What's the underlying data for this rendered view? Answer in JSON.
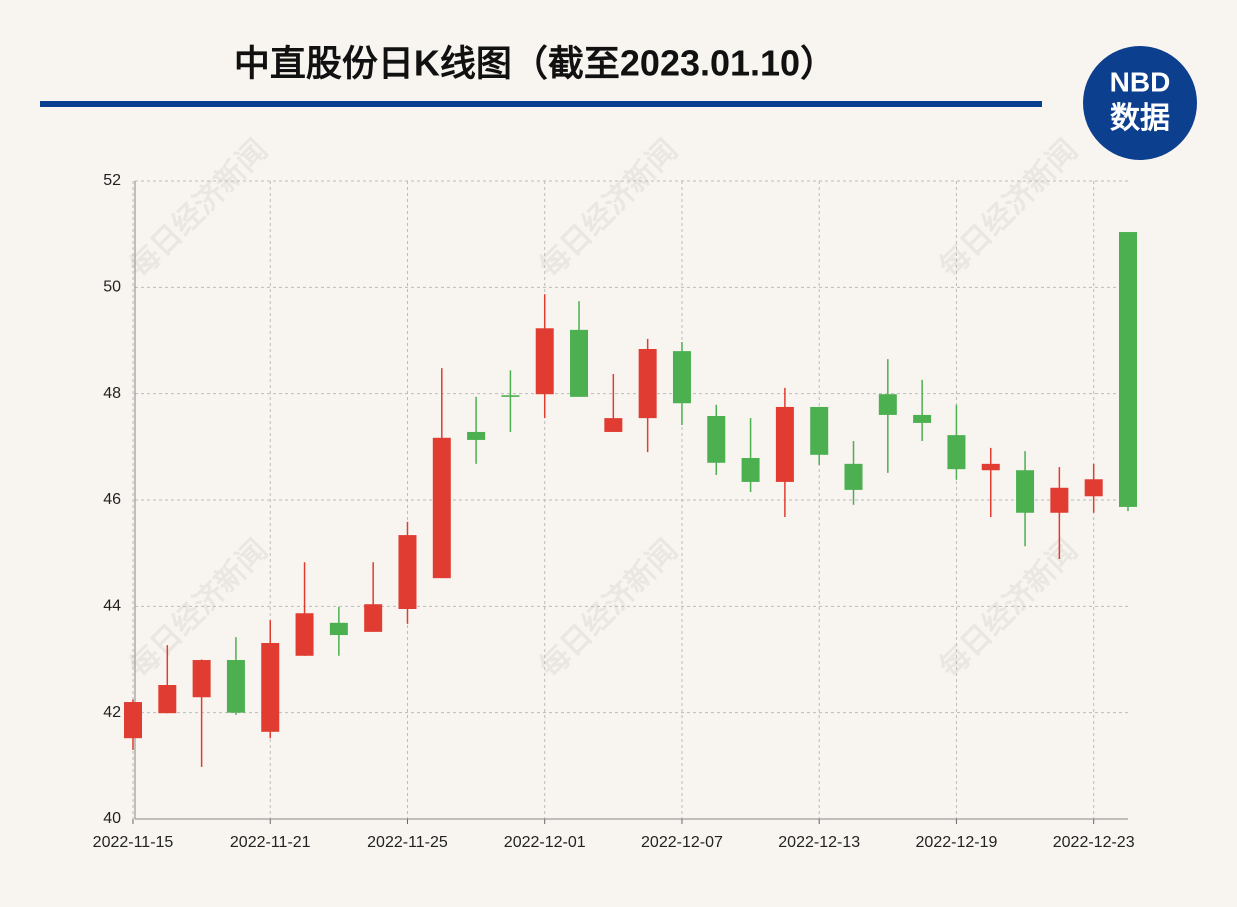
{
  "chart_data": {
    "type": "candlestick",
    "title": "中直股份日K线图（截至2023.01.10）",
    "logo": {
      "top": "NBD",
      "bottom": "数据"
    },
    "watermark": "每日经济新闻",
    "categories": [
      "2022-11-15",
      null,
      null,
      null,
      "2022-11-21",
      null,
      null,
      null,
      "2022-11-25",
      null,
      null,
      null,
      "2022-12-01",
      null,
      null,
      null,
      "2022-12-07",
      null,
      null,
      null,
      "2022-12-13",
      null,
      null,
      null,
      "2022-12-19",
      null,
      null,
      null,
      "2022-12-23",
      null
    ],
    "series": [
      {
        "up_color": "#e03c31",
        "down_color": "#4caf50",
        "open": [
          41.52,
          41.99,
          42.29,
          42.99,
          41.64,
          43.07,
          43.69,
          43.52,
          43.95,
          44.53,
          47.28,
          47.97,
          47.99,
          49.2,
          47.28,
          47.54,
          48.8,
          47.58,
          46.79,
          46.34,
          47.75,
          46.68,
          47.99,
          47.6,
          47.22,
          46.56,
          46.56,
          45.76,
          46.07,
          51.04
        ],
        "high": [
          42.25,
          43.27,
          43.0,
          43.42,
          43.74,
          44.83,
          43.99,
          44.83,
          45.59,
          48.48,
          47.94,
          48.44,
          49.87,
          49.74,
          48.37,
          49.03,
          48.97,
          47.79,
          47.54,
          48.11,
          47.75,
          47.11,
          48.65,
          48.26,
          47.79,
          46.98,
          46.92,
          46.62,
          46.68,
          51.04
        ],
        "low": [
          41.3,
          41.99,
          40.98,
          41.96,
          41.52,
          43.07,
          43.07,
          43.52,
          43.67,
          44.53,
          46.68,
          47.28,
          47.54,
          47.94,
          47.28,
          46.9,
          47.41,
          46.47,
          46.15,
          45.68,
          46.66,
          45.91,
          46.51,
          47.11,
          46.38,
          45.68,
          45.13,
          44.89,
          45.76,
          45.79
        ],
        "close": [
          42.2,
          42.52,
          42.99,
          42.0,
          43.31,
          43.87,
          43.46,
          44.04,
          45.34,
          47.17,
          47.13,
          47.94,
          49.23,
          47.94,
          47.54,
          48.84,
          47.82,
          46.7,
          46.34,
          47.75,
          46.85,
          46.19,
          47.6,
          47.45,
          46.58,
          46.68,
          45.76,
          46.23,
          46.39,
          45.87
        ]
      }
    ],
    "ylim": [
      40,
      52
    ],
    "yticks": [
      40,
      42,
      44,
      46,
      48,
      50,
      52
    ],
    "grid": true
  }
}
